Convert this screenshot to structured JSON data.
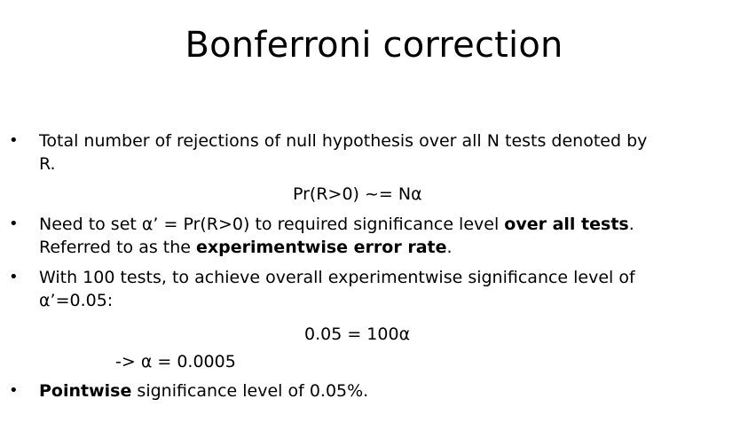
{
  "title": "Bonferroni correction",
  "bullet_glyph": "•",
  "bullets": [
    {
      "line1": "Total number of rejections of null hypothesis over all N tests denoted by",
      "line2": "R."
    },
    {
      "line1_pre": "Need to set α’ = Pr(R>0) to required significance level ",
      "line1_bold": "over all tests",
      "line1_post": ".",
      "line2_pre": "Referred to as the ",
      "line2_bold": "experimentwise error rate",
      "line2_post": "."
    },
    {
      "line1": "With 100 tests, to achieve overall experimentwise significance level of",
      "line2": "α’=0.05:"
    },
    {
      "bold": "Pointwise",
      "rest": " significance level of 0.05%."
    }
  ],
  "equations": {
    "pr_r": "Pr(R>0) ~= Nα",
    "eq_100": "0.05 = 100α",
    "alpha_result": "-> α = 0.0005"
  }
}
